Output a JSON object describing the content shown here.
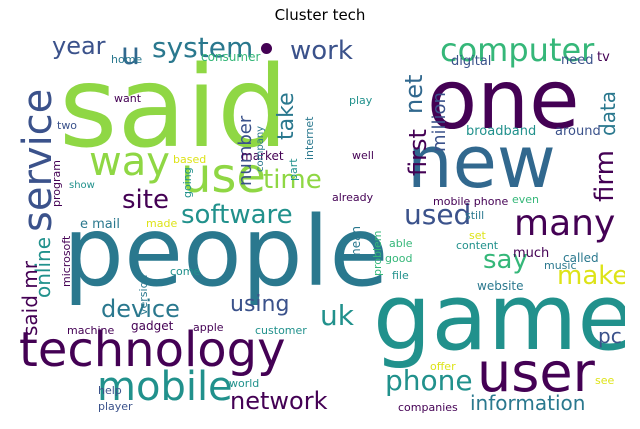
{
  "title": "Cluster tech",
  "palette": {
    "purple": "#440154",
    "indigo": "#3b528b",
    "blue": "#31688e",
    "teal": "#21918c",
    "teal2": "#2a788e",
    "green": "#35b779",
    "lime": "#8fd744",
    "yellow": "#dde318"
  },
  "words": [
    {
      "text": "said",
      "color": "lime"
    },
    {
      "text": "people",
      "color": "teal2"
    },
    {
      "text": "game",
      "color": "teal"
    },
    {
      "text": "one",
      "color": "purple"
    },
    {
      "text": "new",
      "color": "blue"
    },
    {
      "text": "technology",
      "color": "purple"
    },
    {
      "text": "user",
      "color": "purple"
    },
    {
      "text": "mobile",
      "color": "teal"
    },
    {
      "text": "use",
      "color": "lime"
    },
    {
      "text": "service",
      "color": "indigo"
    },
    {
      "text": "way",
      "color": "lime"
    },
    {
      "text": "many",
      "color": "purple"
    },
    {
      "text": "computer",
      "color": "green"
    },
    {
      "text": "system",
      "color": "teal2"
    },
    {
      "text": "work",
      "color": "indigo"
    },
    {
      "text": "year",
      "color": "indigo"
    },
    {
      "text": "software",
      "color": "teal"
    },
    {
      "text": "time",
      "color": "lime"
    },
    {
      "text": "site",
      "color": "purple"
    },
    {
      "text": "used",
      "color": "indigo"
    },
    {
      "text": "say",
      "color": "green"
    },
    {
      "text": "make",
      "color": "yellow"
    },
    {
      "text": "device",
      "color": "teal2"
    },
    {
      "text": "using",
      "color": "indigo"
    },
    {
      "text": "uk",
      "color": "teal"
    },
    {
      "text": "phone",
      "color": "teal"
    },
    {
      "text": "network",
      "color": "purple"
    },
    {
      "text": "information",
      "color": "teal2"
    },
    {
      "text": "pc",
      "color": "indigo"
    },
    {
      "text": "firm",
      "color": "purple"
    },
    {
      "text": "data",
      "color": "teal2"
    },
    {
      "text": "million",
      "color": "indigo"
    },
    {
      "text": "net",
      "color": "blue"
    },
    {
      "text": "first",
      "color": "purple"
    },
    {
      "text": "online",
      "color": "teal"
    },
    {
      "text": "said mr",
      "color": "purple"
    },
    {
      "text": "u",
      "color": "blue"
    },
    {
      "text": "number",
      "color": "indigo"
    },
    {
      "text": "take",
      "color": "teal2"
    },
    {
      "text": "broadband",
      "color": "teal"
    },
    {
      "text": "around",
      "color": "indigo"
    },
    {
      "text": "digital",
      "color": "indigo"
    },
    {
      "text": "need",
      "color": "indigo"
    },
    {
      "text": "tv",
      "color": "purple"
    },
    {
      "text": "consumer",
      "color": "green"
    },
    {
      "text": "home",
      "color": "teal2"
    },
    {
      "text": "want",
      "color": "purple"
    },
    {
      "text": "two",
      "color": "indigo"
    },
    {
      "text": "program",
      "color": "purple"
    },
    {
      "text": "show",
      "color": "teal"
    },
    {
      "text": "based",
      "color": "yellow"
    },
    {
      "text": "going",
      "color": "teal"
    },
    {
      "text": "market",
      "color": "purple"
    },
    {
      "text": "part",
      "color": "teal"
    },
    {
      "text": "internet",
      "color": "teal2"
    },
    {
      "text": "well",
      "color": "purple"
    },
    {
      "text": "company",
      "color": "teal2"
    },
    {
      "text": "play",
      "color": "teal"
    },
    {
      "text": "already",
      "color": "purple"
    },
    {
      "text": "e mail",
      "color": "teal2"
    },
    {
      "text": "made",
      "color": "yellow"
    },
    {
      "text": "microsoft",
      "color": "purple"
    },
    {
      "text": "mobile phone",
      "color": "purple"
    },
    {
      "text": "even",
      "color": "green"
    },
    {
      "text": "still",
      "color": "teal2"
    },
    {
      "text": "set",
      "color": "yellow"
    },
    {
      "text": "content",
      "color": "teal"
    },
    {
      "text": "able",
      "color": "green"
    },
    {
      "text": "good",
      "color": "green"
    },
    {
      "text": "problem",
      "color": "green"
    },
    {
      "text": "mean",
      "color": "teal2"
    },
    {
      "text": "much",
      "color": "purple"
    },
    {
      "text": "called",
      "color": "teal2"
    },
    {
      "text": "music",
      "color": "teal2"
    },
    {
      "text": "file",
      "color": "teal"
    },
    {
      "text": "come",
      "color": "teal"
    },
    {
      "text": "version",
      "color": "teal2"
    },
    {
      "text": "machine",
      "color": "purple"
    },
    {
      "text": "gadget",
      "color": "purple"
    },
    {
      "text": "apple",
      "color": "purple"
    },
    {
      "text": "customer",
      "color": "teal"
    },
    {
      "text": "website",
      "color": "teal2"
    },
    {
      "text": "offer",
      "color": "yellow"
    },
    {
      "text": "help",
      "color": "indigo"
    },
    {
      "text": "world",
      "color": "teal"
    },
    {
      "text": "player",
      "color": "indigo"
    },
    {
      "text": "companies",
      "color": "purple"
    },
    {
      "text": "see",
      "color": "yellow"
    }
  ]
}
